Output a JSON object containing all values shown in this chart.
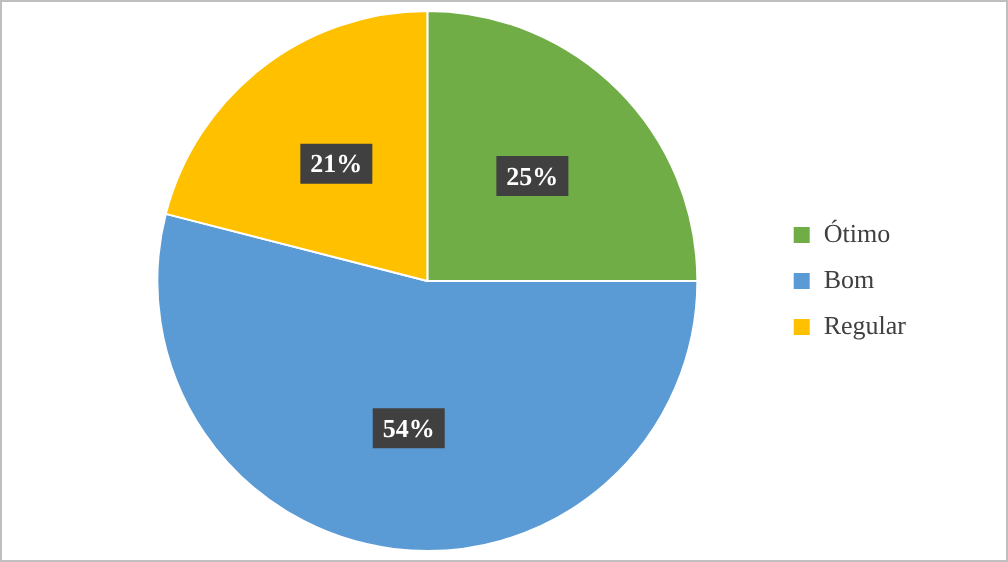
{
  "chart_data": {
    "type": "pie",
    "categories": [
      "Ótimo",
      "Bom",
      "Regular"
    ],
    "values": [
      25,
      54,
      21
    ],
    "colors": [
      "#70ad47",
      "#5b9bd5",
      "#ffc000"
    ],
    "value_labels": [
      "25%",
      "54%",
      "21%"
    ],
    "legend": "right"
  }
}
